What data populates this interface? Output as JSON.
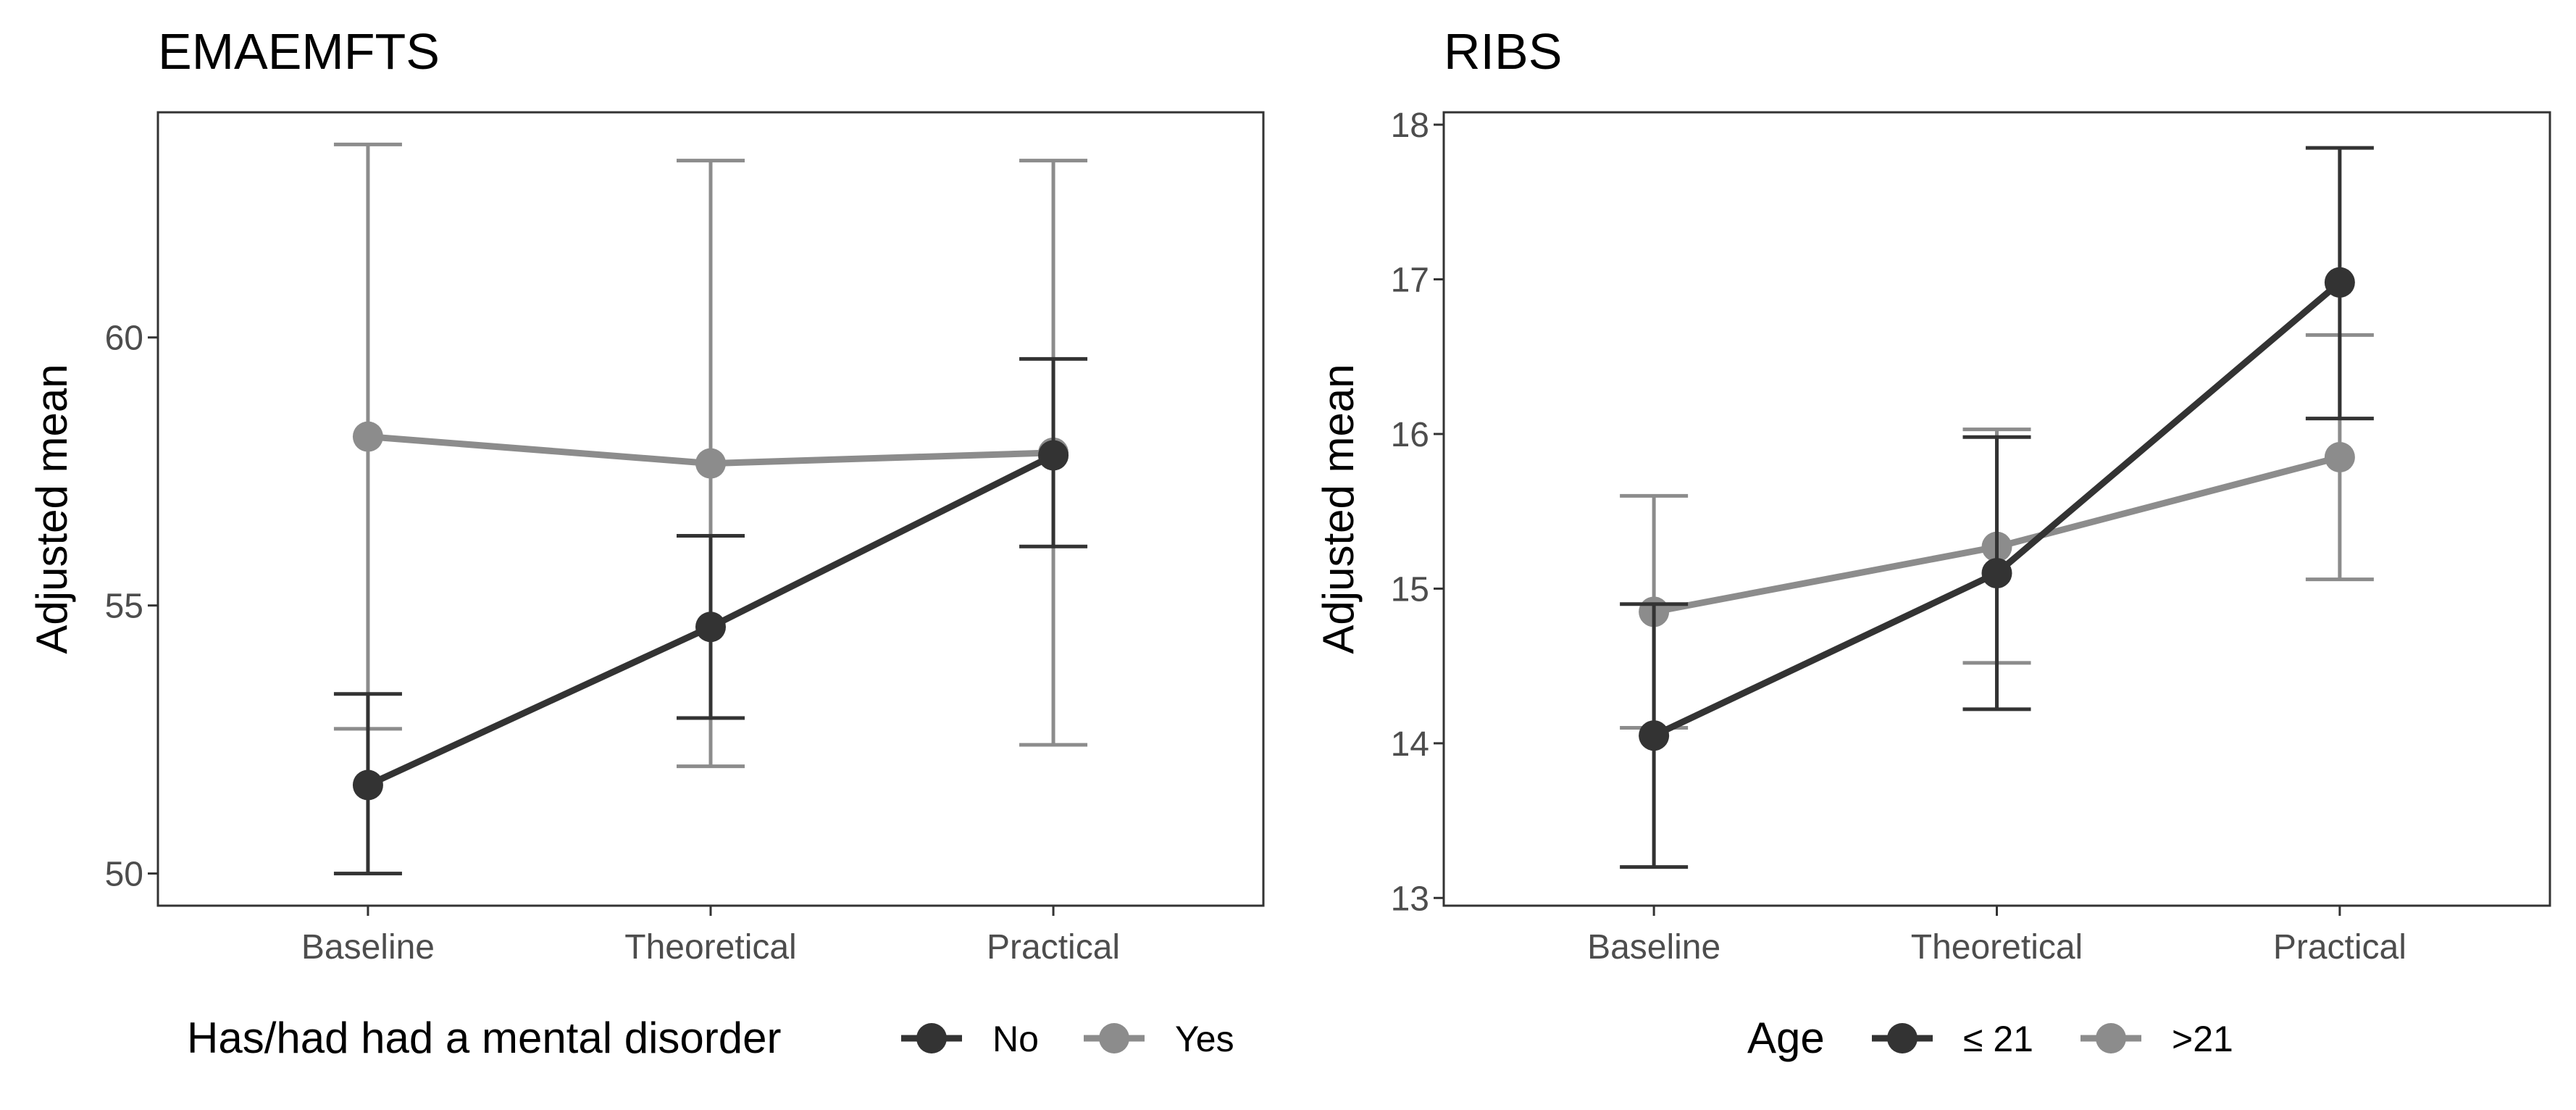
{
  "chart_data": [
    {
      "type": "line",
      "title": "EMAEMFTS",
      "xlabel": "",
      "ylabel": "Adjusted mean",
      "categories": [
        "Baseline",
        "Theoretical",
        "Practical"
      ],
      "ylim": [
        49.4,
        64.2
      ],
      "yticks": [
        50,
        55,
        60
      ],
      "grid": false,
      "legend": {
        "title": "Has/had had a mental disorder",
        "position": "bottom"
      },
      "series": [
        {
          "name": "No",
          "color": "#333333",
          "values": [
            51.65,
            54.6,
            57.8
          ],
          "lower": [
            50.0,
            52.9,
            56.1
          ],
          "upper": [
            53.35,
            56.3,
            59.6
          ]
        },
        {
          "name": "Yes",
          "color": "#8c8c8c",
          "values": [
            58.15,
            57.65,
            57.85
          ],
          "lower": [
            52.7,
            52.0,
            52.4
          ],
          "upper": [
            63.6,
            63.3,
            63.3
          ]
        }
      ]
    },
    {
      "type": "line",
      "title": "RIBS",
      "xlabel": "",
      "ylabel": "Adjusted mean",
      "categories": [
        "Baseline",
        "Theoretical",
        "Practical"
      ],
      "ylim": [
        12.95,
        18.08
      ],
      "yticks": [
        13,
        14,
        15,
        16,
        17,
        18
      ],
      "grid": false,
      "legend": {
        "title": "Age",
        "position": "bottom"
      },
      "series": [
        {
          "name": "≤ 21",
          "color": "#333333",
          "values": [
            14.05,
            15.1,
            16.98
          ],
          "lower": [
            13.2,
            14.22,
            16.1
          ],
          "upper": [
            14.9,
            15.98,
            17.85
          ]
        },
        {
          "name": ">21",
          "color": "#8c8c8c",
          "values": [
            14.85,
            15.27,
            15.85
          ],
          "lower": [
            14.1,
            14.52,
            15.06
          ],
          "upper": [
            15.6,
            16.03,
            16.64
          ]
        }
      ]
    }
  ]
}
